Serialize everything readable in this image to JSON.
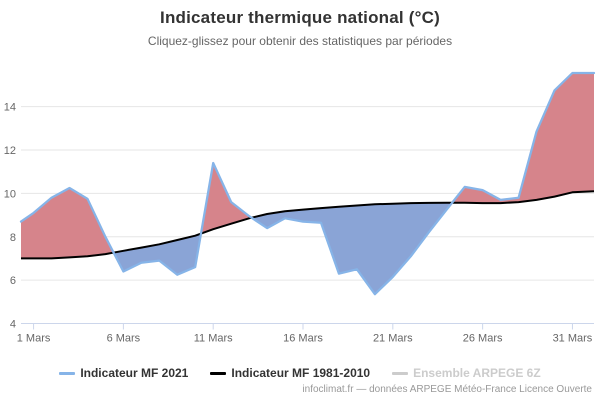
{
  "header": {
    "title": "Indicateur thermique national (°C)",
    "subtitle": "Cliquez-glissez pour obtenir des statistiques par périodes"
  },
  "chart_data": {
    "type": "line",
    "title": "Indicateur thermique national (°C)",
    "xlabel": "",
    "ylabel": "",
    "grid": "horizontal",
    "x_days": [
      1,
      2,
      3,
      4,
      5,
      6,
      7,
      8,
      9,
      10,
      11,
      12,
      13,
      14,
      15,
      16,
      17,
      18,
      19,
      20,
      21,
      22,
      23,
      24,
      25,
      26,
      27,
      28,
      29,
      30,
      31
    ],
    "x_tick_days": [
      1,
      6,
      11,
      16,
      21,
      26,
      31
    ],
    "x_tick_labels": [
      "1 Mars",
      "6 Mars",
      "11 Mars",
      "16 Mars",
      "21 Mars",
      "26 Mars",
      "31 Mars"
    ],
    "y_ticks": [
      4,
      6,
      8,
      10,
      12,
      14
    ],
    "ylim": [
      4,
      16.15
    ],
    "xlim_days": [
      0.3,
      32.2
    ],
    "series": [
      {
        "name": "Indicateur MF 2021",
        "color": "#86b4e8",
        "width": 2.25,
        "values": [
          9.1,
          9.8,
          10.25,
          9.75,
          8.0,
          6.4,
          6.8,
          6.9,
          6.25,
          6.6,
          11.4,
          9.6,
          8.95,
          8.4,
          8.85,
          8.7,
          8.65,
          6.3,
          6.5,
          5.35,
          6.15,
          7.1,
          8.2,
          9.25,
          10.3,
          10.15,
          9.7,
          9.8,
          12.85,
          14.75,
          15.55
        ],
        "edge_pre": 8.7,
        "edge_post": 15.55
      },
      {
        "name": "Indicateur MF 1981-2010",
        "color": "#000000",
        "width": 2,
        "values": [
          7.0,
          7.0,
          7.05,
          7.1,
          7.2,
          7.35,
          7.5,
          7.65,
          7.85,
          8.05,
          8.35,
          8.6,
          8.85,
          9.05,
          9.18,
          9.25,
          9.32,
          9.38,
          9.44,
          9.5,
          9.52,
          9.55,
          9.56,
          9.57,
          9.57,
          9.55,
          9.55,
          9.6,
          9.7,
          9.85,
          10.05
        ],
        "edge_pre": 7.0,
        "edge_post": 10.1
      }
    ],
    "fill_above_color": "#d6848b",
    "fill_below_color": "#8aa4d6",
    "annotations": "red fill where 2021 above 1981-2010 normal, blue fill where below"
  },
  "legend": {
    "position": "bottom-center",
    "items": [
      {
        "label": "Indicateur MF 2021",
        "color": "#86b4e8",
        "disabled": false
      },
      {
        "label": "Indicateur MF 1981-2010",
        "color": "#000000",
        "disabled": false
      },
      {
        "label": "Ensemble ARPEGE 6Z",
        "color": "#cccccc",
        "disabled": true
      }
    ]
  },
  "footer": {
    "credit": "infoclimat.fr — données ARPEGE Météo-France Licence Ouverte"
  },
  "colors": {
    "grid": "#e6e6e6",
    "axis_line": "#ccd6eb",
    "axis_labels": "#666666",
    "title": "#333333",
    "subtitle": "#666666",
    "legend_disabled": "#cccccc",
    "credit": "#999999"
  }
}
